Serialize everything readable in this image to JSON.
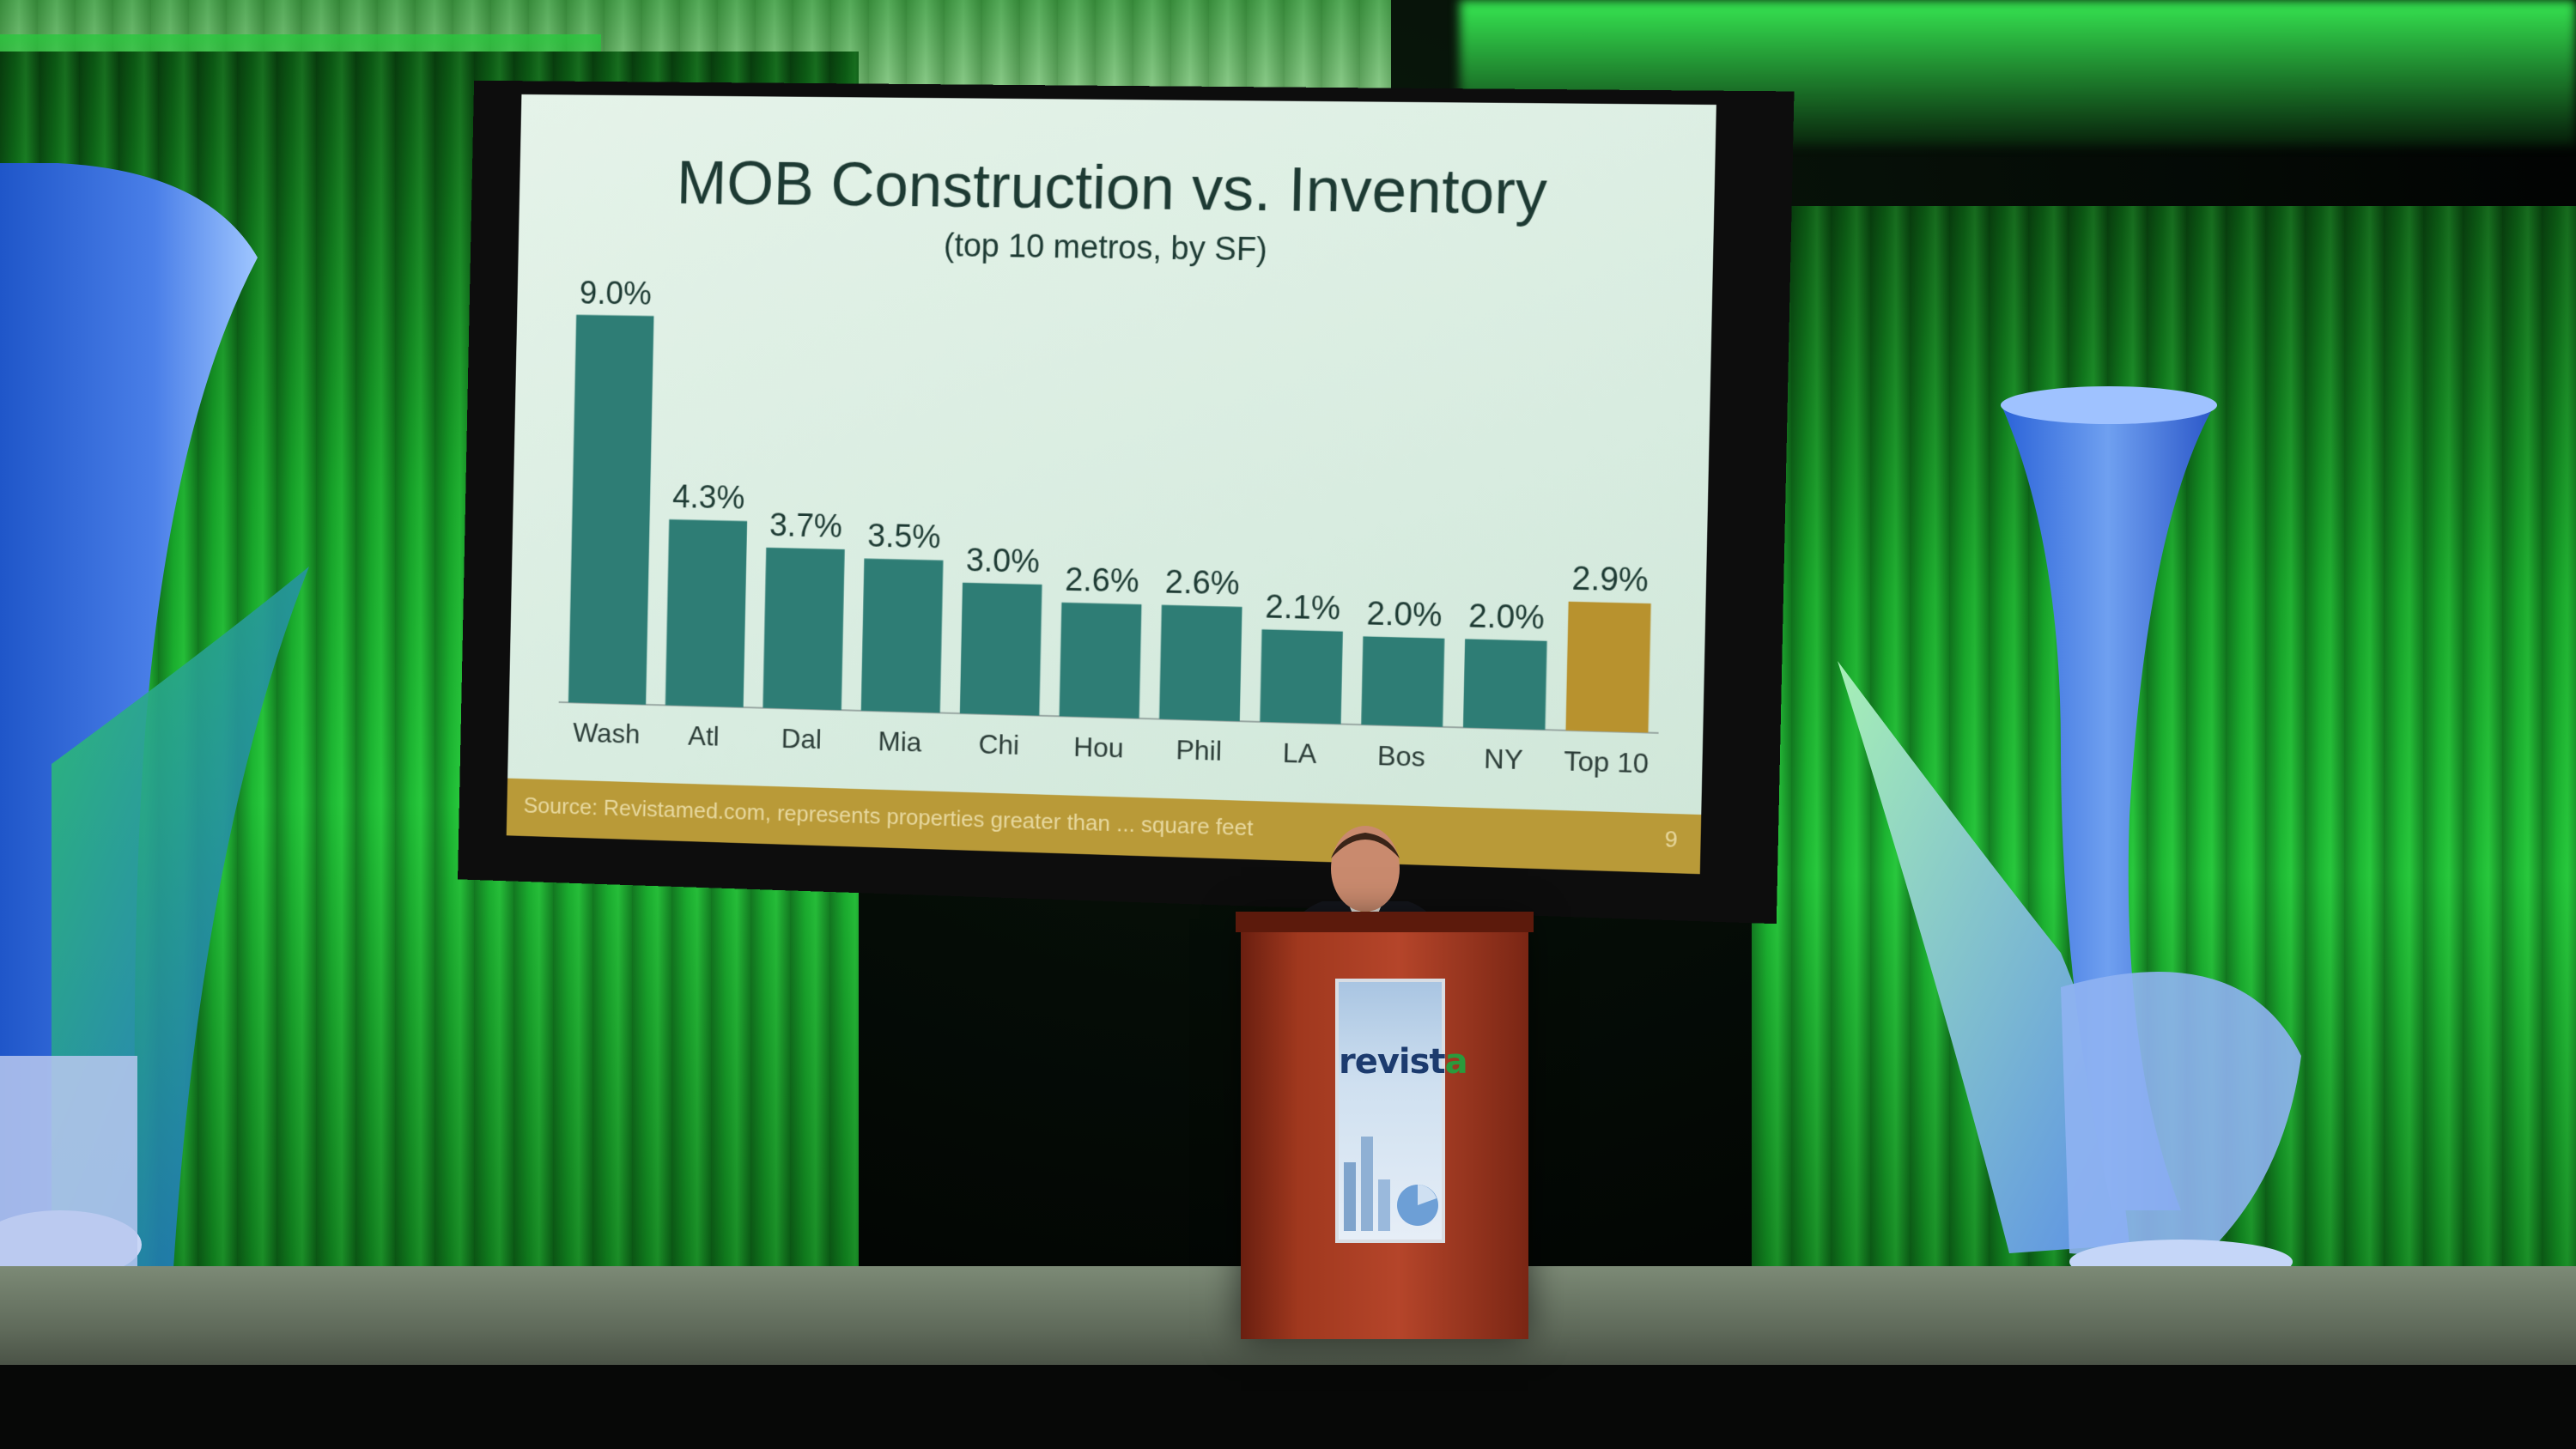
{
  "slide": {
    "title": "MOB Construction vs. Inventory",
    "subtitle": "(top 10 metros, by SF)",
    "source": "Source:  Revistamed.com, represents properties greater than ... square feet",
    "page_number": "9"
  },
  "podium": {
    "logo_text": "revista"
  },
  "colors": {
    "bar_teal": "#2e7d75",
    "bar_highlight": "#b8922e",
    "slide_background": "#e3f1e7",
    "curtain_green": "#1fb632",
    "podium_wood": "#a0381e"
  },
  "chart_data": {
    "type": "bar",
    "title": "MOB Construction vs. Inventory",
    "subtitle": "(top 10 metros, by SF)",
    "categories": [
      "Wash",
      "Atl",
      "Dal",
      "Mia",
      "Chi",
      "Hou",
      "Phil",
      "LA",
      "Bos",
      "NY",
      "Top 10"
    ],
    "values": [
      9.0,
      4.3,
      3.7,
      3.5,
      3.0,
      2.6,
      2.6,
      2.1,
      2.0,
      2.0,
      2.9
    ],
    "labels": [
      "9.0%",
      "4.3%",
      "3.7%",
      "3.5%",
      "3.0%",
      "2.6%",
      "2.6%",
      "2.1%",
      "2.0%",
      "2.0%",
      "2.9%"
    ],
    "ylim": [
      0,
      9.5
    ],
    "highlight_index": 10,
    "xlabel": "",
    "ylabel": "",
    "grid": false,
    "legend": "none"
  }
}
